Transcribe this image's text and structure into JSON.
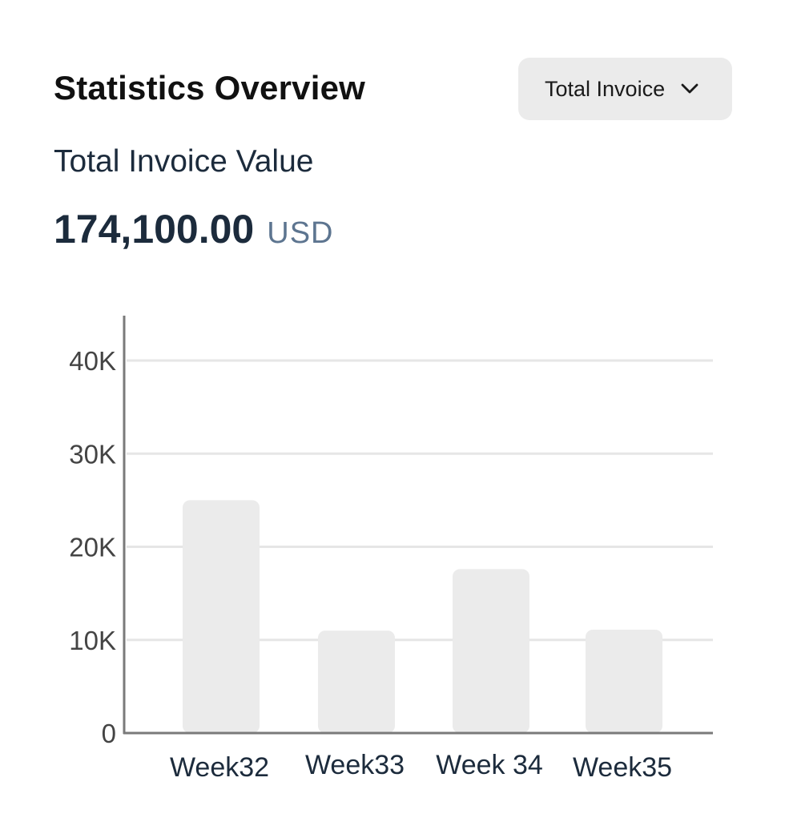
{
  "header": {
    "title": "Statistics Overview",
    "dropdown": {
      "selected": "Total Invoice",
      "icon": "chevron-down-icon"
    }
  },
  "summary": {
    "label": "Total Invoice Value",
    "value": "174,100.00",
    "currency": "USD"
  },
  "colors": {
    "bar": "#ebebeb",
    "axis": "#7a7a7a",
    "grid": "#e6e6e6",
    "text_primary": "#1c2b3c",
    "currency": "#5d7590"
  },
  "chart_data": {
    "type": "bar",
    "categories": [
      "Week32",
      "Week33",
      "Week 34",
      "Week35"
    ],
    "values": [
      25000,
      11000,
      17600,
      11100
    ],
    "ylim": [
      0,
      45000
    ],
    "yticks": [
      0,
      10000,
      20000,
      30000,
      40000
    ],
    "ytick_labels": [
      "0",
      "10K",
      "20K",
      "30K",
      "40K"
    ],
    "grid": true,
    "title": "",
    "xlabel": "",
    "ylabel": ""
  }
}
